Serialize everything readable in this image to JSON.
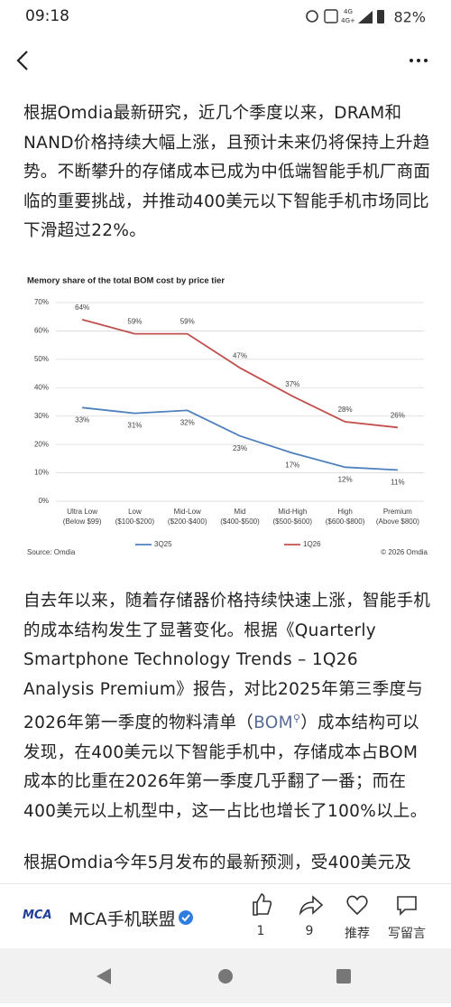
{
  "status_bar": {
    "time": "09:18",
    "network": [
      "4G",
      "4G+"
    ],
    "battery": "82%"
  },
  "article": {
    "paragraph_1": "根据Omdia最新研究，近几个季度以来，DRAM和NAND价格持续大幅上涨，且预计未来仍将保持上升趋势。不断攀升的存储成本已成为中低端智能手机厂商面临的重要挑战，并推动400美元以下智能手机市场同比下滑超过22%。",
    "paragraph_2": {
      "before": "自去年以来，随着存储器价格持续快速上涨，智能手机的成本结构发生了显著变化。根据《Quarterly Smartphone Technology Trends – 1Q26 Analysis Premium》报告，对比2025年第三季度与2026年第一季度的物料清单（",
      "link": "BOM",
      "after": "）成本结构可以发现，在400美元以下智能手机中，存储成本占BOM成本的比重在2026年第一季度几乎翻了一番；而在400美元以上机型中，这一占比也增长了100%以上。"
    },
    "paragraph_3": "根据Omdia今年5月发布的最新预测，受400美元及"
  },
  "chart_data": {
    "type": "line",
    "title": "Memory share of the total BOM cost by price tier",
    "categories": [
      "Ultra Low\n(Below $99)",
      "Low\n($100-$200)",
      "Mid-Low\n($200-$400)",
      "Mid\n($400-$500)",
      "Mid-High\n($500-$600)",
      "High\n($600-$800)",
      "Premium\n(Above $800)"
    ],
    "series": [
      {
        "name": "3Q25",
        "color": "#4f81bd",
        "values": [
          33,
          31,
          32,
          23,
          17,
          12,
          11
        ],
        "value_labels": [
          "33%",
          "31%",
          "32%",
          "23%",
          "17%",
          "12%",
          "11%"
        ]
      },
      {
        "name": "1Q26",
        "color": "#c0504d",
        "values": [
          64,
          59,
          59,
          47,
          37,
          28,
          26
        ],
        "value_labels": [
          "64%",
          "59%",
          "59%",
          "47%",
          "37%",
          "28%",
          "26%"
        ]
      }
    ],
    "ylim": [
      0,
      70
    ],
    "yticks": [
      {
        "value": 0,
        "label": "0%"
      },
      {
        "value": 10,
        "label": "10%"
      },
      {
        "value": 20,
        "label": "20%"
      },
      {
        "value": 30,
        "label": "30%"
      },
      {
        "value": 40,
        "label": "40%"
      },
      {
        "value": 50,
        "label": "50%"
      },
      {
        "value": 60,
        "label": "60%"
      },
      {
        "value": 70,
        "label": "70%"
      }
    ],
    "grid": true,
    "legend": "bottom",
    "source": "Source: Omdia",
    "copyright": "© 2026 Omdia"
  },
  "footer": {
    "logo": "MCA",
    "account": "MCA手机联盟",
    "actions": [
      "1",
      "9",
      "推荐",
      "写留言"
    ]
  }
}
